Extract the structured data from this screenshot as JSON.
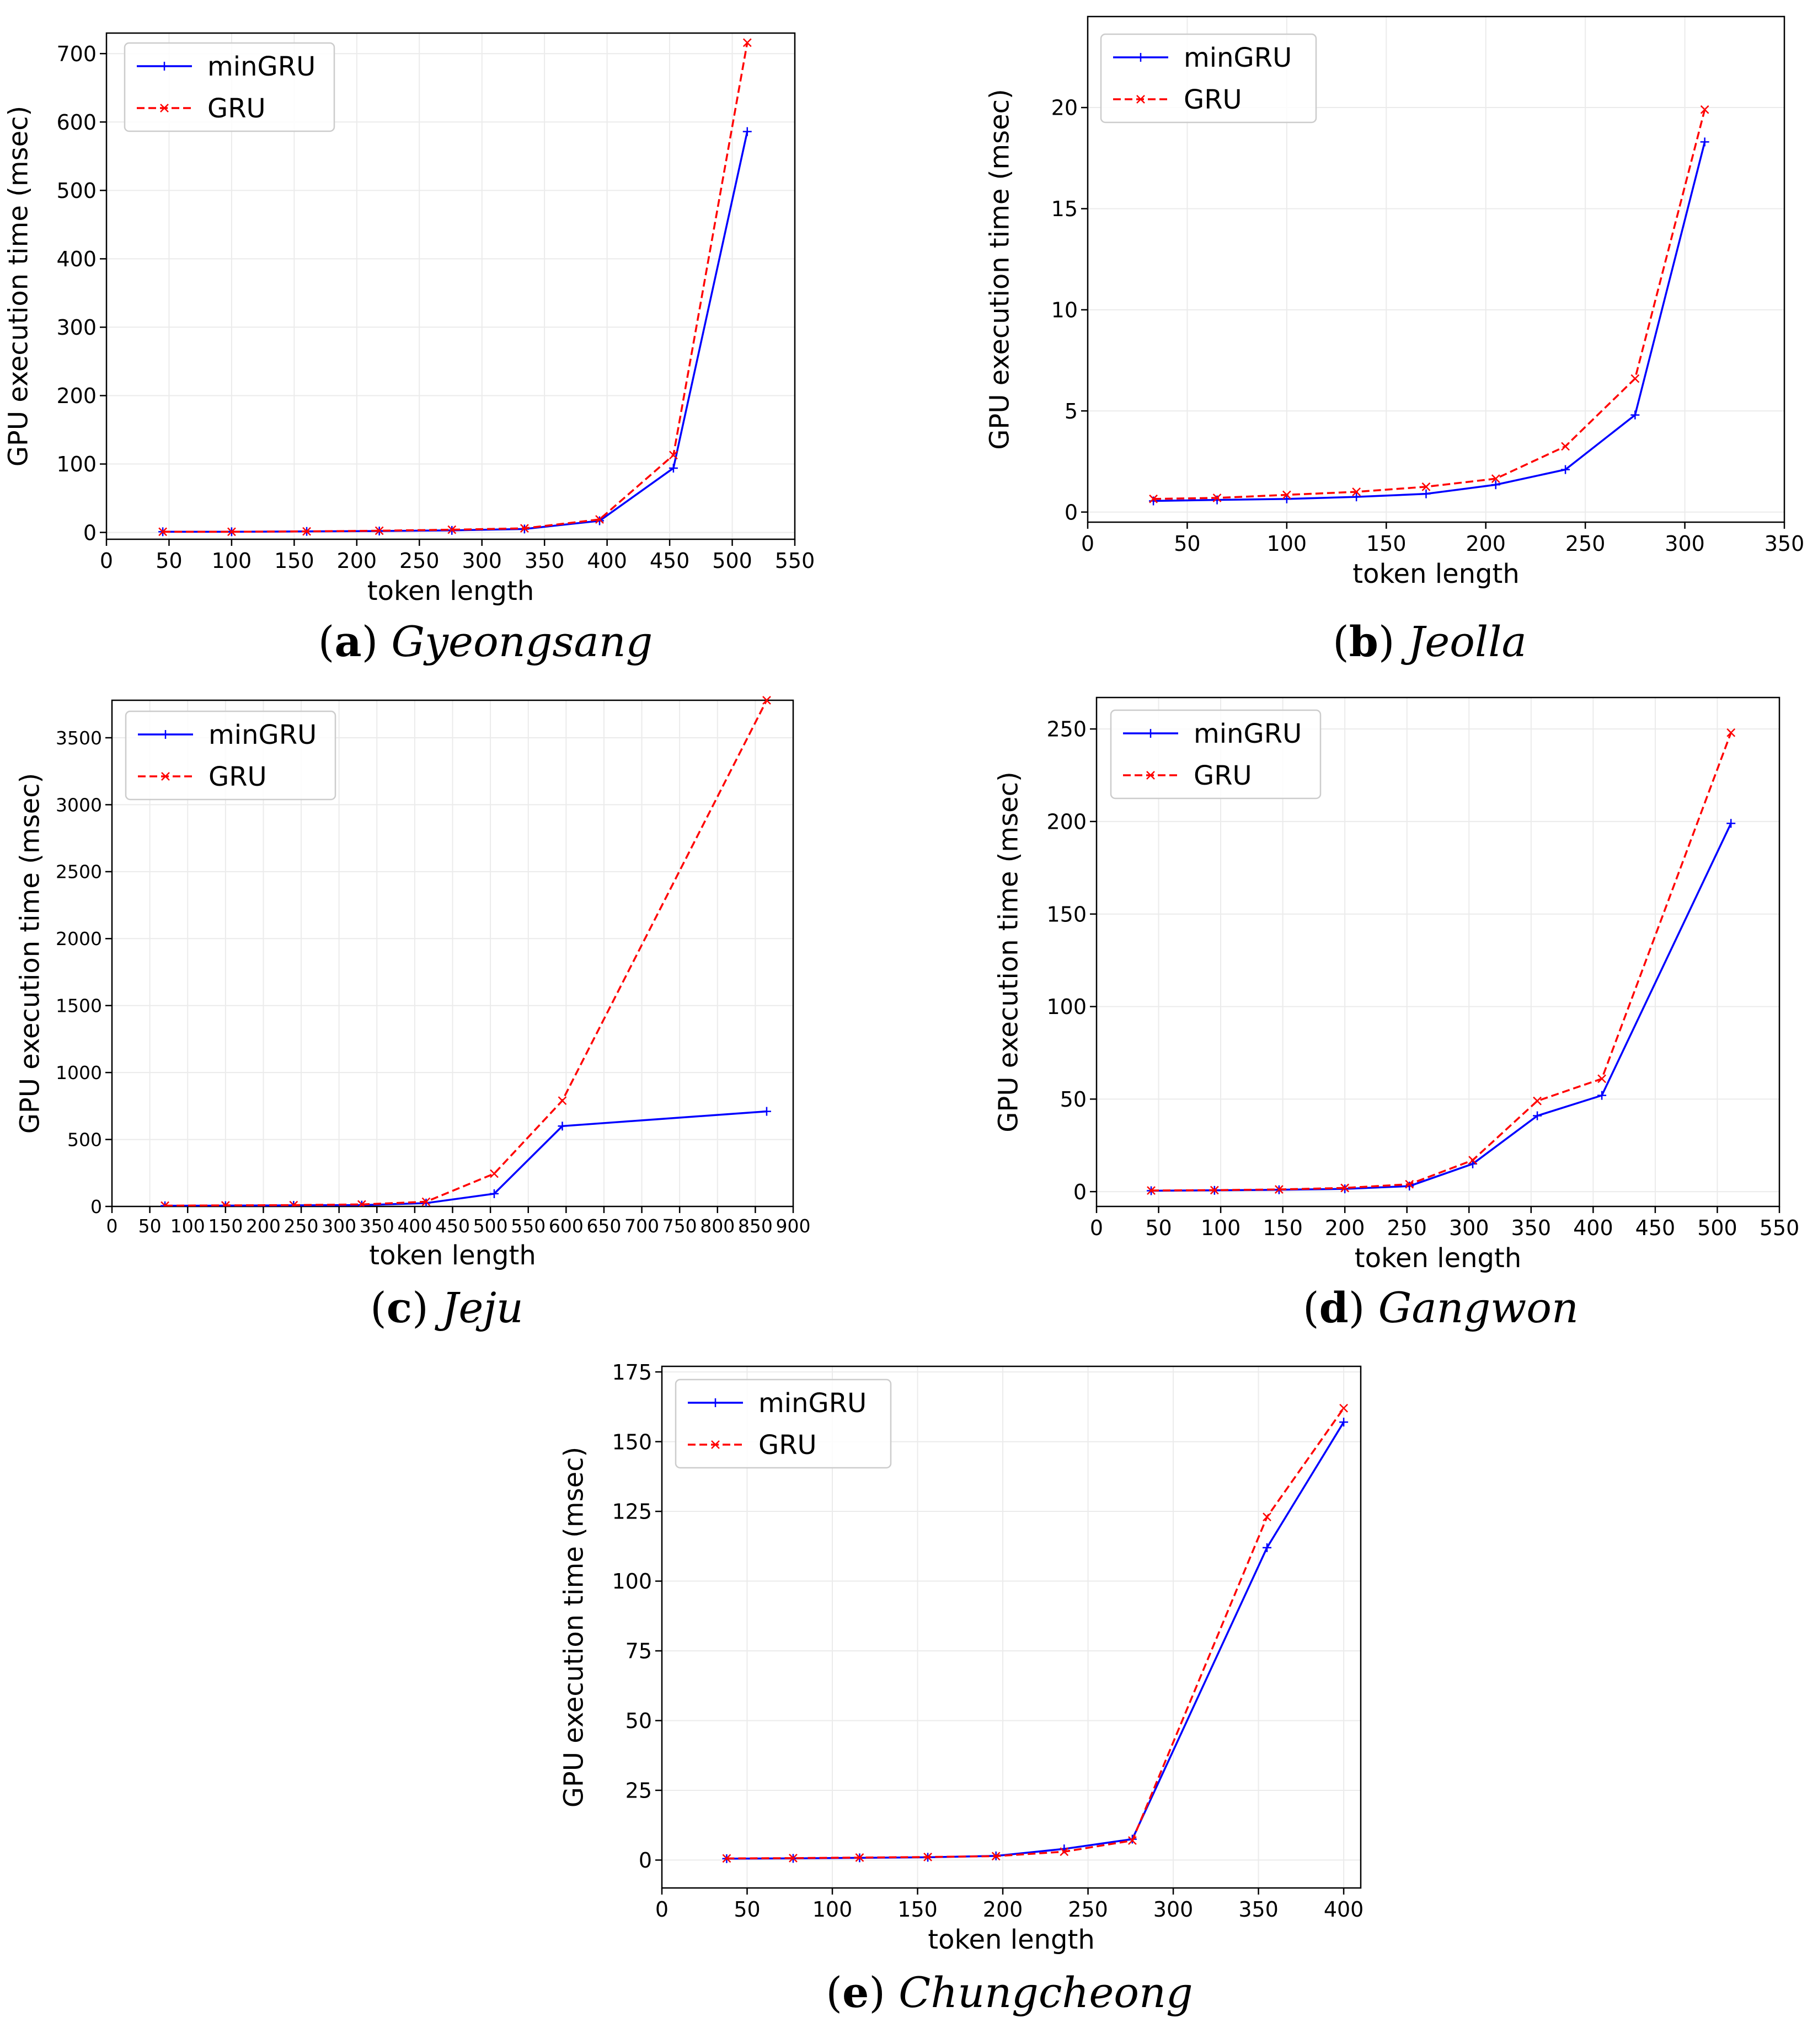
{
  "chart_data": [
    {
      "type": "line",
      "title": "",
      "caption": {
        "letter": "a",
        "region": "Gyeongsang"
      },
      "xlabel": "token length",
      "ylabel": "GPU execution time (msec)",
      "xlim": [
        0,
        550
      ],
      "ylim": [
        -10,
        730
      ],
      "xticks": [
        0,
        50,
        100,
        150,
        200,
        250,
        300,
        350,
        400,
        450,
        500,
        550
      ],
      "yticks": [
        0,
        100,
        200,
        300,
        400,
        500,
        600,
        700
      ],
      "legend": "top-left",
      "grid": true,
      "x": [
        45,
        100,
        160,
        218,
        276,
        334,
        394,
        453,
        512
      ],
      "series": [
        {
          "name": "minGRU",
          "color": "#0000ff",
          "style": "solid",
          "marker": "plus",
          "values": [
            1,
            1,
            1.5,
            2,
            3,
            5,
            17,
            94,
            586
          ]
        },
        {
          "name": "GRU",
          "color": "#ff0000",
          "style": "dashed",
          "marker": "x",
          "values": [
            1,
            1,
            1.5,
            2.5,
            4,
            6,
            19,
            113,
            716
          ]
        }
      ]
    },
    {
      "type": "line",
      "title": "",
      "caption": {
        "letter": "b",
        "region": "Jeolla"
      },
      "xlabel": "token length",
      "ylabel": "GPU execution time (msec)",
      "xlim": [
        0,
        350
      ],
      "ylim": [
        -0.5,
        24.5
      ],
      "xticks": [
        0,
        50,
        100,
        150,
        200,
        250,
        300,
        350
      ],
      "yticks": [
        0,
        5,
        10,
        15,
        20
      ],
      "legend": "top-left",
      "grid": true,
      "x": [
        33,
        65,
        100,
        135,
        170,
        205,
        240,
        275,
        310
      ],
      "series": [
        {
          "name": "minGRU",
          "color": "#0000ff",
          "style": "solid",
          "marker": "plus",
          "values": [
            0.55,
            0.6,
            0.65,
            0.75,
            0.9,
            1.35,
            2.1,
            4.8,
            18.3
          ]
        },
        {
          "name": "GRU",
          "color": "#ff0000",
          "style": "dashed",
          "marker": "x",
          "values": [
            0.65,
            0.7,
            0.85,
            1.0,
            1.25,
            1.65,
            3.25,
            6.6,
            19.9
          ]
        }
      ]
    },
    {
      "type": "line",
      "title": "",
      "caption": {
        "letter": "c",
        "region": "Jeju"
      },
      "xlabel": "token length",
      "ylabel": "GPU execution time (msec)",
      "xlim": [
        0,
        900
      ],
      "ylim": [
        0,
        3780
      ],
      "xticks": [
        0,
        50,
        100,
        150,
        200,
        250,
        300,
        350,
        400,
        450,
        500,
        550,
        600,
        650,
        700,
        750,
        800,
        850,
        900
      ],
      "yticks": [
        0,
        500,
        1000,
        1500,
        2000,
        2500,
        3000,
        3500
      ],
      "legend": "top-left",
      "grid": true,
      "x": [
        70,
        150,
        240,
        330,
        415,
        505,
        595,
        865
      ],
      "series": [
        {
          "name": "minGRU",
          "color": "#0000ff",
          "style": "solid",
          "marker": "plus",
          "values": [
            5,
            6,
            8,
            10,
            25,
            95,
            600,
            710
          ]
        },
        {
          "name": "GRU",
          "color": "#ff0000",
          "style": "dashed",
          "marker": "x",
          "values": [
            6,
            8,
            10,
            15,
            35,
            245,
            790,
            3780
          ]
        }
      ]
    },
    {
      "type": "line",
      "title": "",
      "caption": {
        "letter": "d",
        "region": "Gangwon"
      },
      "xlabel": "token length",
      "ylabel": "GPU execution time (msec)",
      "xlim": [
        0,
        550
      ],
      "ylim": [
        -8,
        267
      ],
      "xticks": [
        0,
        50,
        100,
        150,
        200,
        250,
        300,
        350,
        400,
        450,
        500,
        550
      ],
      "yticks": [
        0,
        50,
        100,
        150,
        200,
        250
      ],
      "legend": "top-left",
      "grid": true,
      "x": [
        44,
        95,
        147,
        200,
        252,
        303,
        355,
        407,
        511
      ],
      "series": [
        {
          "name": "minGRU",
          "color": "#0000ff",
          "style": "solid",
          "marker": "plus",
          "values": [
            0.5,
            0.7,
            1,
            1.5,
            3,
            15,
            41,
            52,
            199
          ]
        },
        {
          "name": "GRU",
          "color": "#ff0000",
          "style": "dashed",
          "marker": "x",
          "values": [
            0.6,
            0.8,
            1.2,
            2,
            4,
            17,
            49,
            61,
            248
          ]
        }
      ]
    },
    {
      "type": "line",
      "title": "",
      "caption": {
        "letter": "e",
        "region": "Chungcheong"
      },
      "xlabel": "token length",
      "ylabel": "GPU execution time (msec)",
      "xlim": [
        0,
        410
      ],
      "ylim": [
        -10,
        177
      ],
      "xticks": [
        0,
        50,
        100,
        150,
        200,
        250,
        300,
        350,
        400
      ],
      "yticks": [
        0,
        25,
        50,
        75,
        100,
        125,
        150,
        175
      ],
      "legend": "top-left",
      "grid": true,
      "x": [
        38,
        77,
        116,
        156,
        196,
        236,
        276,
        355,
        400
      ],
      "series": [
        {
          "name": "minGRU",
          "color": "#0000ff",
          "style": "solid",
          "marker": "plus",
          "values": [
            0.5,
            0.6,
            0.8,
            1,
            1.5,
            4,
            7.5,
            112,
            157
          ]
        },
        {
          "name": "GRU",
          "color": "#ff0000",
          "style": "dashed",
          "marker": "x",
          "values": [
            0.6,
            0.7,
            0.9,
            1.1,
            1.4,
            3,
            7,
            123,
            162
          ]
        }
      ]
    }
  ]
}
